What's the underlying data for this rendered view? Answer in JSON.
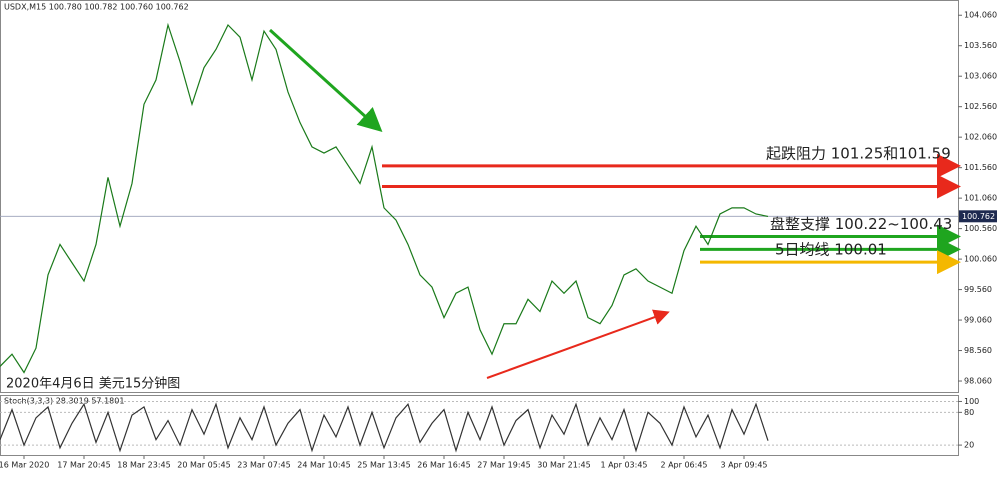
{
  "chart_data": [
    {
      "type": "line",
      "title": "USDX,M15 100.780 100.782 100.760 100.762",
      "caption": "2020年4月6日 美元15分钟图",
      "categories": [
        null,
        null,
        "16 Mar 2020",
        null,
        null,
        null,
        null,
        "17 Mar 20:45",
        null,
        null,
        null,
        null,
        "18 Mar 23:45",
        null,
        null,
        null,
        null,
        "20 Mar 05:45",
        null,
        null,
        null,
        null,
        "23 Mar 07:45",
        null,
        null,
        null,
        null,
        "24 Mar 10:45",
        null,
        null,
        null,
        null,
        "25 Mar 13:45",
        null,
        null,
        null,
        null,
        "26 Mar 16:45",
        null,
        null,
        null,
        null,
        "27 Mar 19:45",
        null,
        null,
        null,
        null,
        "30 Mar 21:45",
        null,
        null,
        null,
        null,
        "1 Apr 03:45",
        null,
        null,
        null,
        null,
        "2 Apr 06:45",
        null,
        null,
        null,
        null,
        "3 Apr 09:45",
        null,
        null
      ],
      "series": [
        {
          "name": "USDX",
          "color": "#1a7a1a",
          "values": [
            98.3,
            98.5,
            98.2,
            98.6,
            99.8,
            100.3,
            100.0,
            99.7,
            100.3,
            101.4,
            100.6,
            101.3,
            102.6,
            103.0,
            103.9,
            103.3,
            102.6,
            103.2,
            103.5,
            103.9,
            103.7,
            103.0,
            103.8,
            103.5,
            102.8,
            102.3,
            101.9,
            101.8,
            101.9,
            101.6,
            101.3,
            101.9,
            100.9,
            100.7,
            100.3,
            99.8,
            99.6,
            99.1,
            99.5,
            99.6,
            98.9,
            98.5,
            99.0,
            99.0,
            99.4,
            99.2,
            99.7,
            99.5,
            99.7,
            99.1,
            99.0,
            99.3,
            99.8,
            99.9,
            99.7,
            99.6,
            99.5,
            100.2,
            100.6,
            100.3,
            100.8,
            100.9,
            100.9,
            100.8,
            100.76
          ]
        }
      ],
      "last_price": {
        "value": 100.762,
        "label": "100.762"
      },
      "ylim": [
        97.88,
        104.31
      ],
      "yticks": [
        {
          "value": 104.06,
          "label": "104.060"
        },
        {
          "value": 103.56,
          "label": "103.560"
        },
        {
          "value": 103.06,
          "label": "103.060"
        },
        {
          "value": 102.56,
          "label": "102.560"
        },
        {
          "value": 102.06,
          "label": "102.060"
        },
        {
          "value": 101.56,
          "label": "101.560"
        },
        {
          "value": 101.06,
          "label": "101.060"
        },
        {
          "value": 100.56,
          "label": "100.560"
        },
        {
          "value": 100.06,
          "label": "100.060"
        },
        {
          "value": 99.56,
          "label": "99.560"
        },
        {
          "value": 99.06,
          "label": "99.060"
        },
        {
          "value": 98.56,
          "label": "98.560"
        },
        {
          "value": 98.06,
          "label": "98.060"
        }
      ],
      "levels": [
        {
          "value": 101.59,
          "color": "#e8291c"
        },
        {
          "value": 101.25,
          "color": "#e8291c"
        },
        {
          "value": 100.43,
          "color": "#1fa51f"
        },
        {
          "value": 100.22,
          "color": "#1fa51f"
        },
        {
          "value": 100.01,
          "color": "#f4b800"
        }
      ],
      "annotations": [
        {
          "text": "起跌阻力 101.25和101.59",
          "value": 101.59
        },
        {
          "text": "盘整支撑 100.22~100.43",
          "value": 100.43
        },
        {
          "text": "5日均线 100.01",
          "value": 100.01
        }
      ]
    },
    {
      "type": "line",
      "title": "Stoch(3,3,3) 28.3019 57.1801",
      "series": [
        {
          "name": "Stoch",
          "color": "#333333",
          "values": [
            30,
            85,
            20,
            70,
            90,
            15,
            60,
            95,
            25,
            80,
            10,
            75,
            90,
            30,
            65,
            20,
            85,
            40,
            95,
            15,
            70,
            30,
            90,
            20,
            60,
            85,
            10,
            75,
            35,
            90,
            20,
            80,
            15,
            70,
            95,
            25,
            60,
            85,
            10,
            80,
            30,
            90,
            20,
            65,
            85,
            15,
            75,
            40,
            95,
            20,
            70,
            30,
            85,
            10,
            80,
            60,
            20,
            90,
            35,
            75,
            15,
            85,
            40,
            95,
            28
          ]
        }
      ],
      "ylim": [
        0,
        110
      ],
      "yticks": [
        100,
        80,
        20
      ]
    }
  ]
}
